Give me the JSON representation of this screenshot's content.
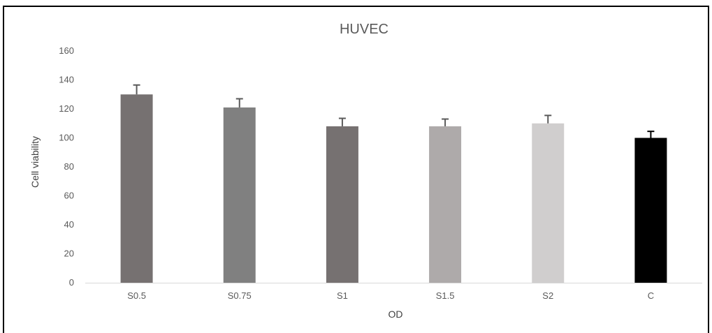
{
  "chart_data": {
    "type": "bar",
    "title": "HUVEC",
    "xlabel": "OD",
    "ylabel": "Cell viability",
    "ylim": [
      0,
      160
    ],
    "yticks": [
      0,
      20,
      40,
      60,
      80,
      100,
      120,
      140,
      160
    ],
    "grid": false,
    "categories": [
      "S0.5",
      "S0.75",
      "S1",
      "S1.5",
      "S2",
      "C"
    ],
    "values": [
      130,
      121,
      108,
      108,
      110,
      100
    ],
    "error": [
      6.5,
      6,
      5.5,
      5,
      5.5,
      4.5
    ],
    "colors": [
      "#767171",
      "#808080",
      "#767171",
      "#AEAAAA",
      "#D0CECE",
      "#000000"
    ]
  }
}
